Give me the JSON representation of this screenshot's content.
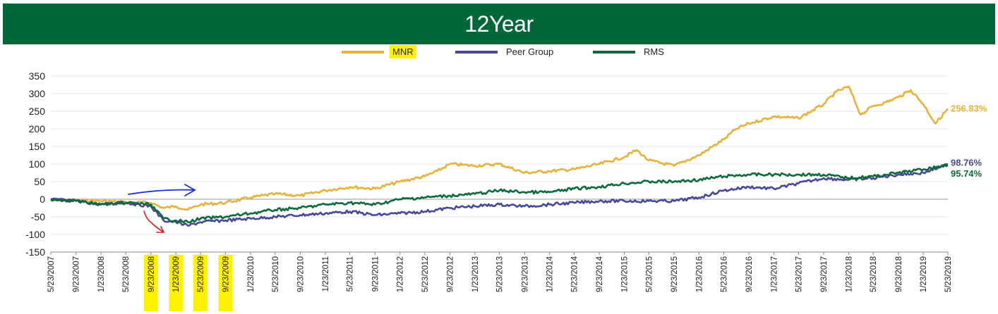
{
  "header": {
    "title": "12Year",
    "bg_color": "#006838"
  },
  "legend": [
    {
      "name": "MNR",
      "color": "#E8B23A",
      "highlighted": true
    },
    {
      "name": "Peer Group",
      "color": "#46499A",
      "highlighted": false
    },
    {
      "name": "RMS",
      "color": "#0B6B3A",
      "highlighted": false
    }
  ],
  "chart_data": {
    "type": "line",
    "title": "12Year",
    "xlabel": "",
    "ylabel": "",
    "ylim": [
      -150,
      350
    ],
    "yticks": [
      -150,
      -100,
      -50,
      0,
      50,
      100,
      150,
      200,
      250,
      300,
      350
    ],
    "grid": "horizontal-light",
    "legend_position": "top-center",
    "x_tick_labels": [
      "5/23/2007",
      "9/23/2007",
      "1/23/2008",
      "5/23/2008",
      "9/23/2008",
      "1/23/2009",
      "5/23/2009",
      "9/23/2009",
      "1/23/2010",
      "5/23/2010",
      "9/23/2010",
      "1/23/2011",
      "5/23/2011",
      "9/23/2011",
      "1/23/2012",
      "5/23/2012",
      "9/23/2012",
      "1/23/2013",
      "5/23/2013",
      "9/23/2013",
      "1/23/2014",
      "5/23/2014",
      "9/23/2014",
      "1/23/2015",
      "5/23/2015",
      "9/23/2015",
      "1/23/2016",
      "5/23/2016",
      "9/23/2016",
      "1/23/2017",
      "5/23/2017",
      "9/23/2017",
      "1/23/2018",
      "5/23/2018",
      "9/23/2018",
      "1/23/2019",
      "5/23/2019"
    ],
    "highlighted_x_ticks": [
      "9/23/2008",
      "1/23/2009",
      "5/23/2009",
      "9/23/2009"
    ],
    "series": [
      {
        "name": "MNR",
        "color": "#E8B23A",
        "end_label": "256.83%",
        "x": [
          "5/23/2007",
          "9/23/2007",
          "1/23/2008",
          "5/23/2008",
          "9/23/2008",
          "11/23/2008",
          "1/23/2009",
          "3/23/2009",
          "5/23/2009",
          "9/23/2009",
          "1/23/2010",
          "5/23/2010",
          "9/23/2010",
          "1/23/2011",
          "5/23/2011",
          "9/23/2011",
          "1/23/2012",
          "5/23/2012",
          "7/23/2012",
          "9/23/2012",
          "1/23/2013",
          "5/23/2013",
          "9/23/2013",
          "1/23/2014",
          "5/23/2014",
          "9/23/2014",
          "1/23/2015",
          "3/23/2015",
          "5/23/2015",
          "9/23/2015",
          "1/23/2016",
          "5/23/2016",
          "7/23/2016",
          "9/23/2016",
          "1/23/2017",
          "5/23/2017",
          "9/23/2017",
          "11/23/2017",
          "1/23/2018",
          "3/23/2018",
          "5/23/2018",
          "7/23/2018",
          "9/23/2018",
          "11/23/2018",
          "1/23/2019",
          "3/23/2019",
          "5/23/2019"
        ],
        "values": [
          0,
          -3,
          -5,
          -8,
          -10,
          -25,
          -20,
          -30,
          -15,
          -10,
          5,
          15,
          10,
          25,
          35,
          30,
          50,
          65,
          80,
          100,
          95,
          100,
          75,
          80,
          85,
          100,
          120,
          140,
          110,
          95,
          125,
          170,
          200,
          215,
          235,
          230,
          270,
          305,
          320,
          240,
          265,
          275,
          290,
          310,
          270,
          215,
          257
        ]
      },
      {
        "name": "Peer Group",
        "color": "#46499A",
        "end_label": "98.76%",
        "x": [
          "5/23/2007",
          "9/23/2007",
          "1/23/2008",
          "5/23/2008",
          "9/23/2008",
          "11/23/2008",
          "1/23/2009",
          "3/23/2009",
          "5/23/2009",
          "9/23/2009",
          "1/23/2010",
          "5/23/2010",
          "9/23/2010",
          "1/23/2011",
          "5/23/2011",
          "9/23/2011",
          "1/23/2012",
          "5/23/2012",
          "9/23/2012",
          "1/23/2013",
          "5/23/2013",
          "9/23/2013",
          "1/23/2014",
          "5/23/2014",
          "9/23/2014",
          "1/23/2015",
          "5/23/2015",
          "9/23/2015",
          "1/23/2016",
          "5/23/2016",
          "9/23/2016",
          "1/23/2017",
          "5/23/2017",
          "9/23/2017",
          "1/23/2018",
          "5/23/2018",
          "9/23/2018",
          "1/23/2019",
          "5/23/2019"
        ],
        "values": [
          0,
          -5,
          -15,
          -10,
          -20,
          -60,
          -65,
          -75,
          -65,
          -60,
          -55,
          -50,
          -45,
          -40,
          -35,
          -45,
          -40,
          -35,
          -25,
          -20,
          -15,
          -20,
          -15,
          -10,
          -5,
          -5,
          -5,
          -5,
          5,
          25,
          35,
          30,
          45,
          60,
          55,
          60,
          70,
          75,
          99
        ]
      },
      {
        "name": "RMS",
        "color": "#0B6B3A",
        "end_label": "95.74%",
        "x": [
          "5/23/2007",
          "9/23/2007",
          "1/23/2008",
          "5/23/2008",
          "9/23/2008",
          "11/23/2008",
          "1/23/2009",
          "3/23/2009",
          "5/23/2009",
          "9/23/2009",
          "1/23/2010",
          "5/23/2010",
          "9/23/2010",
          "1/23/2011",
          "5/23/2011",
          "9/23/2011",
          "1/23/2012",
          "5/23/2012",
          "9/23/2012",
          "1/23/2013",
          "5/23/2013",
          "9/23/2013",
          "1/23/2014",
          "5/23/2014",
          "9/23/2014",
          "1/23/2015",
          "5/23/2015",
          "9/23/2015",
          "1/23/2016",
          "5/23/2016",
          "9/23/2016",
          "1/23/2017",
          "5/23/2017",
          "9/23/2017",
          "1/23/2018",
          "5/23/2018",
          "9/23/2018",
          "1/23/2019",
          "5/23/2019"
        ],
        "values": [
          0,
          -5,
          -15,
          -10,
          -15,
          -55,
          -60,
          -65,
          -55,
          -50,
          -40,
          -30,
          -25,
          -15,
          -10,
          -15,
          0,
          5,
          10,
          15,
          25,
          20,
          20,
          30,
          35,
          45,
          50,
          50,
          55,
          65,
          70,
          70,
          70,
          70,
          60,
          65,
          75,
          85,
          96
        ]
      }
    ]
  }
}
